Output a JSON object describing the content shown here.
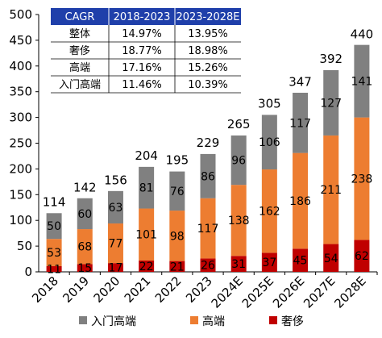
{
  "chart_data": {
    "type": "bar",
    "stacked": true,
    "categories": [
      "2018",
      "2019",
      "2020",
      "2021",
      "2022",
      "2023",
      "2024E",
      "2025E",
      "2026E",
      "2027E",
      "2028E"
    ],
    "series": [
      {
        "name": "奢侈",
        "color": "#C00000",
        "values": [
          11,
          15,
          17,
          22,
          21,
          26,
          31,
          37,
          45,
          54,
          62
        ]
      },
      {
        "name": "高端",
        "color": "#ED7D31",
        "values": [
          53,
          68,
          77,
          101,
          98,
          117,
          138,
          162,
          186,
          211,
          238
        ]
      },
      {
        "name": "入门高端",
        "color": "#808080",
        "values": [
          50,
          60,
          63,
          81,
          76,
          86,
          96,
          106,
          117,
          127,
          141
        ]
      }
    ],
    "totals": [
      114,
      142,
      156,
      204,
      195,
      229,
      265,
      305,
      347,
      392,
      440
    ],
    "ylim": [
      0,
      500
    ],
    "yticks": [
      0,
      50,
      100,
      150,
      200,
      250,
      300,
      350,
      400,
      450,
      500
    ],
    "grid": false,
    "legend_position": "bottom",
    "legend_order": [
      "入门高端",
      "高端",
      "奢侈"
    ]
  },
  "table": {
    "header": [
      "CAGR",
      "2018-2023",
      "2023-2028E"
    ],
    "header_color": "#1F3FAA",
    "rows": [
      [
        "整体",
        "14.97%",
        "13.95%"
      ],
      [
        "奢侈",
        "18.77%",
        "18.98%"
      ],
      [
        "高端",
        "17.16%",
        "15.26%"
      ],
      [
        "入门高端",
        "11.46%",
        "10.39%"
      ]
    ]
  }
}
